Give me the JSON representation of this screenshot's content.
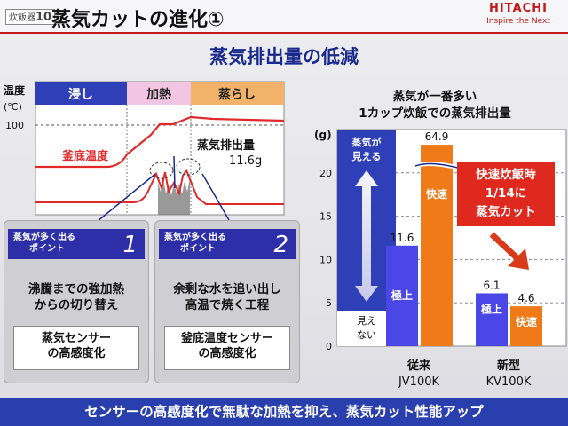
{
  "header": {
    "tag_prefix": "炊飯器",
    "tag_number": "10",
    "title": "蒸気カットの進化①",
    "logo_name": "HITACHI",
    "logo_tagline": "Inspire the Next"
  },
  "subtitle": "蒸気排出量の低減",
  "temp_chart": {
    "ylabel_line1": "温度",
    "ylabel_line2": "(℃)",
    "tick_100": "100",
    "phase_soak": "浸し",
    "phase_heat": "加熱",
    "phase_steam": "蒸らし",
    "curve_label": "釜底温度",
    "steam_label": "蒸気排出量",
    "steam_value": "11.6g",
    "colors": {
      "soak": "#2f3fb8",
      "heat": "#f2c6e2",
      "steam": "#f2b26a",
      "curve": "#e02a2a"
    }
  },
  "points": [
    {
      "label_line1": "蒸気が多く出る",
      "label_line2": "ポイント",
      "number": "1",
      "desc_line1": "沸騰までの強加熱",
      "desc_line2": "からの切り替え",
      "sensor_line1": "蒸気センサー",
      "sensor_line2": "の高感度化"
    },
    {
      "label_line1": "蒸気が多く出る",
      "label_line2": "ポイント",
      "number": "2",
      "desc_line1": "余剰な水を追い出し",
      "desc_line2": "高温で焼く工程",
      "sensor_line1": "釜底温度センサー",
      "sensor_line2": "の高感度化"
    }
  ],
  "chart_data": {
    "type": "bar",
    "title_line1": "蒸気が一番多い",
    "title_line2": "1カップ炊飯での蒸気排出量",
    "unit": "(g)",
    "ylim": [
      0,
      25
    ],
    "yticks": [
      0,
      5,
      10,
      15,
      20
    ],
    "categories": [
      {
        "line1": "従来",
        "line2": "JV100K"
      },
      {
        "line1": "新型",
        "line2": "KV100K"
      }
    ],
    "series": [
      {
        "name": "極上",
        "values": [
          11.6,
          6.1
        ],
        "labels": [
          "11.6",
          "6.1"
        ],
        "color": "#4b47e6"
      },
      {
        "name": "快速",
        "values": [
          64.9,
          4.6
        ],
        "labels": [
          "64.9",
          "4.6"
        ],
        "color": "#f07a18"
      }
    ],
    "axis_break": true,
    "visible_label": "見える",
    "visible_label_top": "蒸気が",
    "invisible_line1": "見え",
    "invisible_line2": "ない",
    "callout_line1": "快速炊飯時",
    "callout_line2": "1/14に",
    "callout_line3": "蒸気カット"
  },
  "footer": "センサーの高感度化で無駄な加熱を抑え、蒸気カット性能アップ"
}
